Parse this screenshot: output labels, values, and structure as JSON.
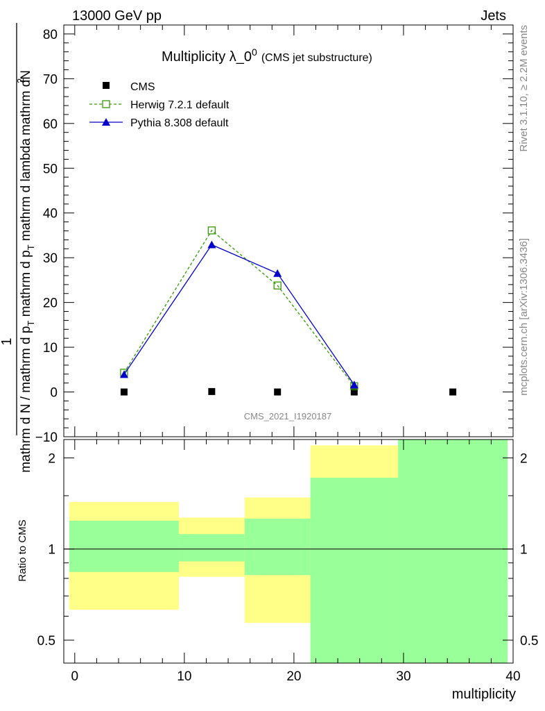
{
  "header": {
    "left": "13000 GeV pp",
    "right": "Jets"
  },
  "side_labels": {
    "rivet": "Rivet 3.1.10, ≥ 2.2M events",
    "mcplots": "mcplots.cern.ch [arXiv:1306.3436]"
  },
  "main_panel": {
    "title": "Multiplicity λ_0",
    "title_sup": "0",
    "title_sub": "(CMS jet substructure)",
    "ylabel_numer_text": "1",
    "ylabel_line1": "mathrm d N / mathrm d p",
    "ylabel_line2": "mathrm d p",
    "ylabel_line3": "mathrm d lambda",
    "ylabel_dN": "mathrm d",
    "watermark": "CMS_2021_I1920187"
  },
  "legend": [
    {
      "label": "CMS",
      "key": "cms"
    },
    {
      "label": "Herwig 7.2.1 default",
      "key": "herwig"
    },
    {
      "label": "Pythia 8.308 default",
      "key": "pythia"
    }
  ],
  "ratio_panel": {
    "ylabel": "Ratio to CMS",
    "xlabel": "multiplicity"
  },
  "colors": {
    "herwig": "#339900",
    "pythia": "#0000cc",
    "cms": "#000000",
    "band_outer": "#ffff88",
    "band_inner": "#99ff99"
  },
  "chart_data": [
    {
      "type": "line",
      "xlim": [
        -1,
        40
      ],
      "ylim": [
        -10,
        82
      ],
      "yticks": [
        -10,
        0,
        10,
        20,
        30,
        40,
        50,
        60,
        70,
        80
      ],
      "series": [
        {
          "name": "CMS",
          "marker": "filled-square",
          "x": [
            4.5,
            12.5,
            18.5,
            25.5,
            34.5
          ],
          "y": [
            0.0,
            0.1,
            0.0,
            0.0,
            0.0
          ]
        },
        {
          "name": "Herwig 7.2.1 default",
          "marker": "open-square",
          "dashed": true,
          "x": [
            4.5,
            12.5,
            18.5,
            25.5
          ],
          "y": [
            4.3,
            36.1,
            23.8,
            1.3
          ]
        },
        {
          "name": "Pythia 8.308 default",
          "marker": "filled-triangle",
          "x": [
            4.5,
            12.5,
            18.5,
            25.5
          ],
          "y": [
            3.9,
            32.9,
            26.5,
            1.6
          ]
        }
      ]
    },
    {
      "type": "area",
      "ylabel": "Ratio to CMS",
      "log_y": true,
      "xlim": [
        -1,
        40
      ],
      "ylim": [
        0.42,
        2.3
      ],
      "xticks": [
        0,
        10,
        20,
        30,
        40
      ],
      "yticks": [
        0.5,
        1,
        2
      ],
      "reference_line": 1,
      "bins": [
        {
          "x_low": -0.5,
          "x_high": 9.5,
          "inner_low": 0.84,
          "inner_high": 1.24,
          "outer_low": 0.63,
          "outer_high": 1.43
        },
        {
          "x_low": 9.5,
          "x_high": 15.5,
          "inner_low": 0.91,
          "inner_high": 1.12,
          "outer_low": 0.81,
          "outer_high": 1.27
        },
        {
          "x_low": 15.5,
          "x_high": 21.5,
          "inner_low": 0.82,
          "inner_high": 1.26,
          "outer_low": 0.57,
          "outer_high": 1.48
        },
        {
          "x_low": 21.5,
          "x_high": 29.5,
          "inner_low": 0.42,
          "inner_high": 1.72,
          "outer_low": 0.42,
          "outer_high": 2.2
        },
        {
          "x_low": 29.5,
          "x_high": 39.5,
          "inner_low": 0.42,
          "inner_high": 2.3,
          "outer_low": 0.42,
          "outer_high": 2.3
        }
      ]
    }
  ]
}
